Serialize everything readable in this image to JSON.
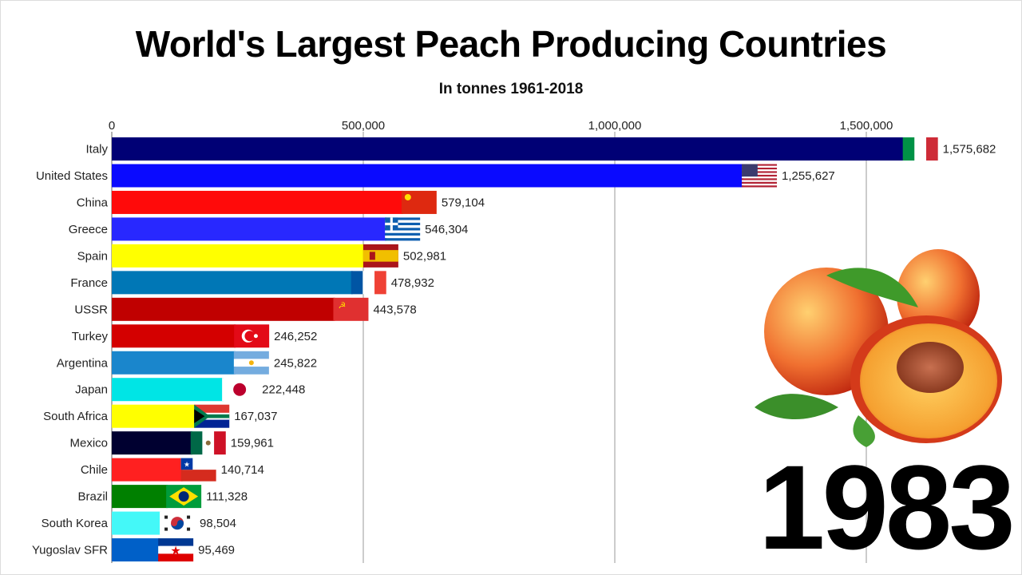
{
  "chart_data": {
    "type": "bar",
    "orientation": "horizontal",
    "title": "World's Largest Peach Producing Countries",
    "subtitle": "In tonnes 1961-2018",
    "year": "1983",
    "xlim": [
      0,
      1640000
    ],
    "xticks": [
      0,
      500000,
      1000000,
      1500000
    ],
    "xtick_labels": [
      "0",
      "500,000",
      "1,000,000",
      "1,500,000"
    ],
    "grid": true,
    "categories": [
      "Italy",
      "United States",
      "China",
      "Greece",
      "Spain",
      "France",
      "USSR",
      "Turkey",
      "Argentina",
      "Japan",
      "South Africa",
      "Mexico",
      "Chile",
      "Brazil",
      "South Korea",
      "Yugoslav SFR"
    ],
    "values": [
      1575682,
      1255627,
      579104,
      546304,
      502981,
      478932,
      443578,
      246252,
      245822,
      222448,
      167037,
      159961,
      140714,
      111328,
      98504,
      95469
    ],
    "value_labels": [
      "1,575,682",
      "1,255,627",
      "579,104",
      "546,304",
      "502,981",
      "478,932",
      "443,578",
      "246,252",
      "245,822",
      "222,448",
      "167,037",
      "159,961",
      "140,714",
      "111,328",
      "98,504",
      "95,469"
    ],
    "colors": [
      "#000075",
      "#0a0aff",
      "#ff0a0a",
      "#2828ff",
      "#ffff00",
      "#0077b6",
      "#c00000",
      "#d40000",
      "#1a86cc",
      "#00e5e5",
      "#ffff00",
      "#000030",
      "#ff2020",
      "#008000",
      "#44f8f8",
      "#0060c8"
    ],
    "flags": [
      "italy",
      "usa",
      "china",
      "greece",
      "spain",
      "france",
      "ussr",
      "turkey",
      "argentina",
      "japan",
      "south-africa",
      "mexico",
      "chile",
      "brazil",
      "south-korea",
      "yugoslavia"
    ]
  }
}
